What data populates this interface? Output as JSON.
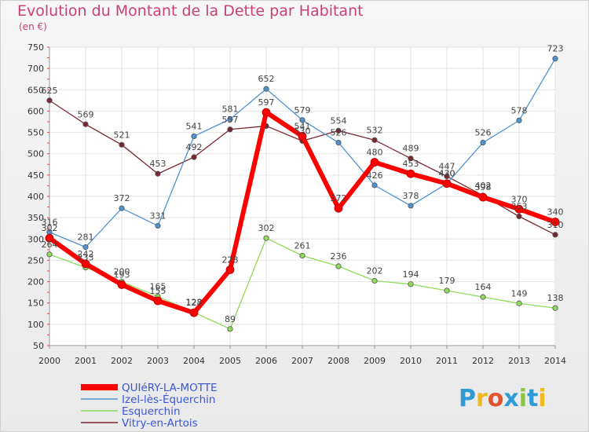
{
  "title": "Evolution du Montant de la Dette par Habitant",
  "unit": "(en €)",
  "logo": {
    "letters": [
      "P",
      "r",
      "o",
      "x",
      "i",
      "t",
      "i"
    ],
    "colors": [
      "#2f9ad8",
      "#f0b81f",
      "#e0532b",
      "#2f9ad8",
      "#8cc63f",
      "#2f9ad8",
      "#f0b81f"
    ]
  },
  "chart_data": {
    "type": "line",
    "x": [
      "2000",
      "2001",
      "2002",
      "2003",
      "2004",
      "2005",
      "2006",
      "2007",
      "2008",
      "2009",
      "2010",
      "2011",
      "2012",
      "2013",
      "2014"
    ],
    "yticks": [
      "50",
      "100",
      "150",
      "200",
      "250",
      "300",
      "350",
      "400",
      "450",
      "500",
      "550",
      "600",
      "650",
      "700",
      "750"
    ],
    "ylim": [
      50,
      750
    ],
    "grid": true,
    "legend_position": "bottom-left",
    "series": [
      {
        "name": "Vitry-en-Artois",
        "color": "#7a2630",
        "values": [
          625,
          569,
          521,
          453,
          492,
          557,
          565,
          530,
          554,
          532,
          489,
          447,
          402,
          353,
          310
        ],
        "labels": [
          "625",
          "569",
          "521",
          "453",
          "492",
          "557",
          "",
          "530",
          "554",
          "532",
          "489",
          "447",
          "402",
          "353",
          "310"
        ]
      },
      {
        "name": "Esquerchin",
        "color": "#8fdb5a",
        "values": [
          264,
          233,
          200,
          165,
          128,
          89,
          302,
          261,
          236,
          202,
          194,
          179,
          164,
          149,
          138
        ],
        "labels": [
          "264",
          "233",
          "200",
          "165",
          "128",
          "89",
          "302",
          "261",
          "236",
          "202",
          "194",
          "179",
          "164",
          "149",
          "138"
        ]
      },
      {
        "name": "Izel-lès-Équerchin",
        "color": "#4f92d2",
        "values": [
          316,
          281,
          372,
          331,
          541,
          581,
          652,
          579,
          526,
          426,
          378,
          430,
          526,
          578,
          723
        ],
        "labels": [
          "316",
          "281",
          "372",
          "331",
          "541",
          "581",
          "652",
          "579",
          "526",
          "426",
          "378",
          "430",
          "526",
          "578",
          "723"
        ]
      },
      {
        "name": "QUIéRY-LA-MOTTE",
        "color": "#ff0000",
        "values": [
          302,
          242,
          193,
          155,
          127,
          228,
          597,
          541,
          372,
          480,
          453,
          430,
          398,
          370,
          340
        ],
        "labels": [
          "302",
          "242",
          "193",
          "155",
          "127",
          "228",
          "597",
          "541",
          "372",
          "480",
          "453",
          "430",
          "398",
          "370",
          "340"
        ]
      }
    ]
  }
}
